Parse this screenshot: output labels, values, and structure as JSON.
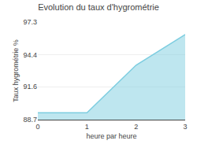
{
  "chart_data": {
    "type": "area",
    "title": "Evolution du taux d'hygrométrie",
    "x_label": "heure par heure",
    "y_label": "Taux hygrométrie %",
    "x": [
      0,
      1,
      2,
      3
    ],
    "values": [
      89.3,
      89.3,
      93.5,
      96.2
    ],
    "color": "#7dcde0",
    "xlim": [
      0,
      3
    ],
    "xticks": [
      0,
      1,
      2,
      3
    ],
    "ylim": [
      88.7,
      97.3
    ],
    "yticks": [
      88.7,
      91.6,
      94.4,
      97.3
    ],
    "grid": true
  }
}
